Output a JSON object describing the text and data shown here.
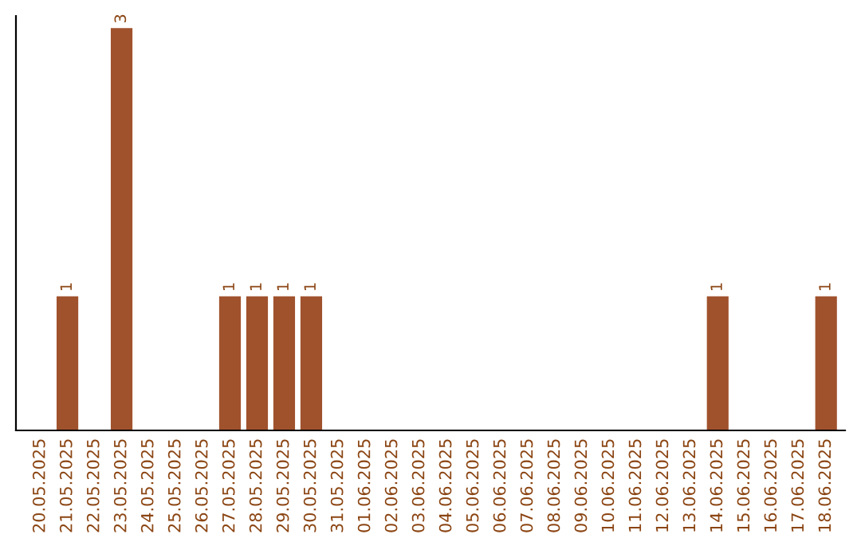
{
  "chart_data": {
    "type": "bar",
    "categories": [
      "20.05.2025",
      "21.05.2025",
      "22.05.2025",
      "23.05.2025",
      "24.05.2025",
      "25.05.2025",
      "26.05.2025",
      "27.05.2025",
      "28.05.2025",
      "29.05.2025",
      "30.05.2025",
      "31.05.2025",
      "01.06.2025",
      "02.06.2025",
      "03.06.2025",
      "04.06.2025",
      "05.06.2025",
      "06.06.2025",
      "07.06.2025",
      "08.06.2025",
      "09.06.2025",
      "10.06.2025",
      "11.06.2025",
      "12.06.2025",
      "13.06.2025",
      "14.06.2025",
      "15.06.2025",
      "16.06.2025",
      "17.06.2025",
      "18.06.2025"
    ],
    "values": [
      0,
      1,
      0,
      3,
      0,
      0,
      0,
      1,
      1,
      1,
      1,
      0,
      0,
      0,
      0,
      0,
      0,
      0,
      0,
      0,
      0,
      0,
      0,
      0,
      0,
      1,
      0,
      0,
      0,
      1
    ],
    "color": "#a0522d",
    "value_labels": [
      null,
      "1",
      null,
      "3",
      null,
      null,
      null,
      "1",
      "1",
      "1",
      "1",
      null,
      null,
      null,
      null,
      null,
      null,
      null,
      null,
      null,
      null,
      null,
      null,
      null,
      null,
      "1",
      null,
      null,
      null,
      "1"
    ],
    "tick_labels": "x",
    "grid": false,
    "legend": false
  }
}
